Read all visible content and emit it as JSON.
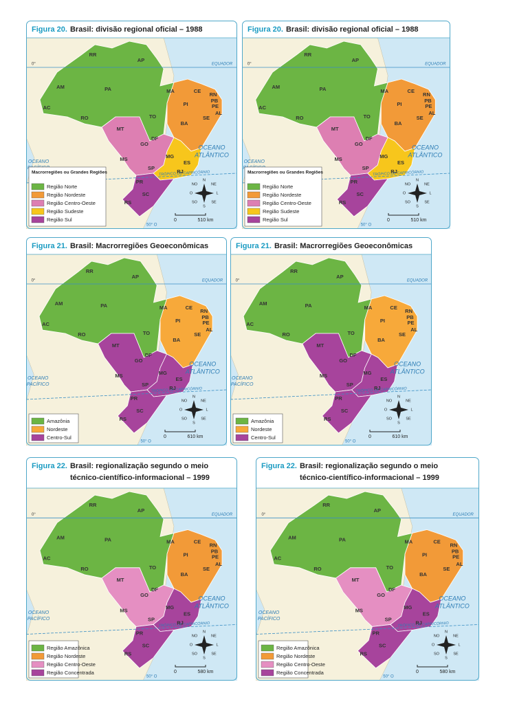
{
  "figures": [
    {
      "label": "Figura 20.",
      "title": [
        "Brasil: divisão regional oficial – 1988"
      ],
      "legend_title": "Macrorregiões ou Grandes Regiões",
      "legend": [
        {
          "name": "Região Norte",
          "color": "#6cb544"
        },
        {
          "name": "Região Nordeste",
          "color": "#f29a38"
        },
        {
          "name": "Região Centro-Oeste",
          "color": "#dd7fb2"
        },
        {
          "name": "Região Sudeste",
          "color": "#f7c61c"
        },
        {
          "name": "Região Sul",
          "color": "#a7449c"
        }
      ],
      "scale": {
        "start": "0",
        "end": "510 km"
      }
    },
    {
      "label": "Figura 21.",
      "title": [
        "Brasil: Macrorregiões Geoeconômicas"
      ],
      "legend": [
        {
          "name": "Amazônia",
          "color": "#6cb544"
        },
        {
          "name": "Nordeste",
          "color": "#f7a93a"
        },
        {
          "name": "Centro-Sul",
          "color": "#a7449c"
        }
      ],
      "scale": {
        "start": "0",
        "end": "610 km"
      }
    },
    {
      "label": "Figura 22.",
      "title": [
        "Brasil: regionalização segundo o meio",
        "técnico-científico-informacional – 1999"
      ],
      "legend": [
        {
          "name": "Região Amazônica",
          "color": "#6cb544"
        },
        {
          "name": "Região Nordeste",
          "color": "#f29a38"
        },
        {
          "name": "Região Centro-Oeste",
          "color": "#e58fc2"
        },
        {
          "name": "Região Concentrada",
          "color": "#a7449c"
        }
      ],
      "scale": {
        "start": "0",
        "end": "580 km"
      }
    }
  ],
  "map_labels": {
    "states": [
      "RR",
      "AP",
      "AM",
      "PA",
      "MA",
      "CE",
      "RN",
      "PB",
      "PI",
      "PE",
      "AL",
      "SE",
      "AC",
      "RO",
      "TO",
      "BA",
      "MT",
      "DF",
      "GO",
      "MG",
      "ES",
      "MS",
      "RJ",
      "SP",
      "PR",
      "SC",
      "RS"
    ],
    "equator": "EQUADOR",
    "equator_deg": "0°",
    "ocean_atlantic": [
      "OCEANO",
      "ATLÂNTICO"
    ],
    "ocean_pacific": [
      "OCEANO",
      "PACÍFICO"
    ],
    "tropic": "TRÓPICO DE CAPRICÓRNIO",
    "meridian": "50° O",
    "compass": [
      "N",
      "NE",
      "L",
      "SE",
      "S",
      "SO",
      "O",
      "NO"
    ]
  }
}
